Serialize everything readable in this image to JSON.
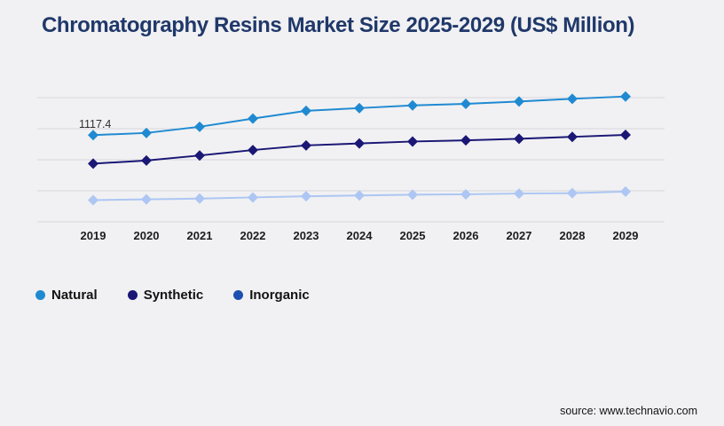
{
  "header": {
    "title": "Chromatography Resins Market Size 2025-2029 (US$ Million)",
    "title_color": "#20386a"
  },
  "chart_data": {
    "type": "line",
    "title": "Chromatography Resins Market Size 2025-2029 (US$ Million)",
    "categories": [
      "2019",
      "2020",
      "2021",
      "2022",
      "2023",
      "2024",
      "2025",
      "2026",
      "2027",
      "2028",
      "2029"
    ],
    "series": [
      {
        "name": "Natural",
        "color": "#1f8ad2",
        "legend_color": "#1f8ad2",
        "values": [
          1117.4,
          1145,
          1225,
          1330,
          1430,
          1465,
          1500,
          1520,
          1550,
          1585,
          1615
        ]
      },
      {
        "name": "Synthetic",
        "color": "#1a1775",
        "legend_color": "#1a1775",
        "values": [
          750,
          790,
          855,
          925,
          985,
          1010,
          1035,
          1050,
          1070,
          1095,
          1120
        ]
      },
      {
        "name": "Inorganic",
        "color": "#adc6f3",
        "legend_color": "#1d4fb0",
        "values": [
          280,
          290,
          300,
          315,
          330,
          340,
          350,
          355,
          365,
          370,
          390
        ]
      }
    ],
    "annotation": {
      "text": "1117.4",
      "series": "Natural",
      "category": "2019"
    },
    "xlabel": "",
    "ylabel": "",
    "ylim": [
      0,
      1700
    ],
    "grid": {
      "on": true,
      "step": 400,
      "max": 1600,
      "color": "#d8d8dc"
    },
    "y_axis_tick_labels": "none",
    "legend_position": "bottom-left",
    "marker_shape": "diamond"
  },
  "footer": {
    "source": "source: www.technavio.com"
  }
}
